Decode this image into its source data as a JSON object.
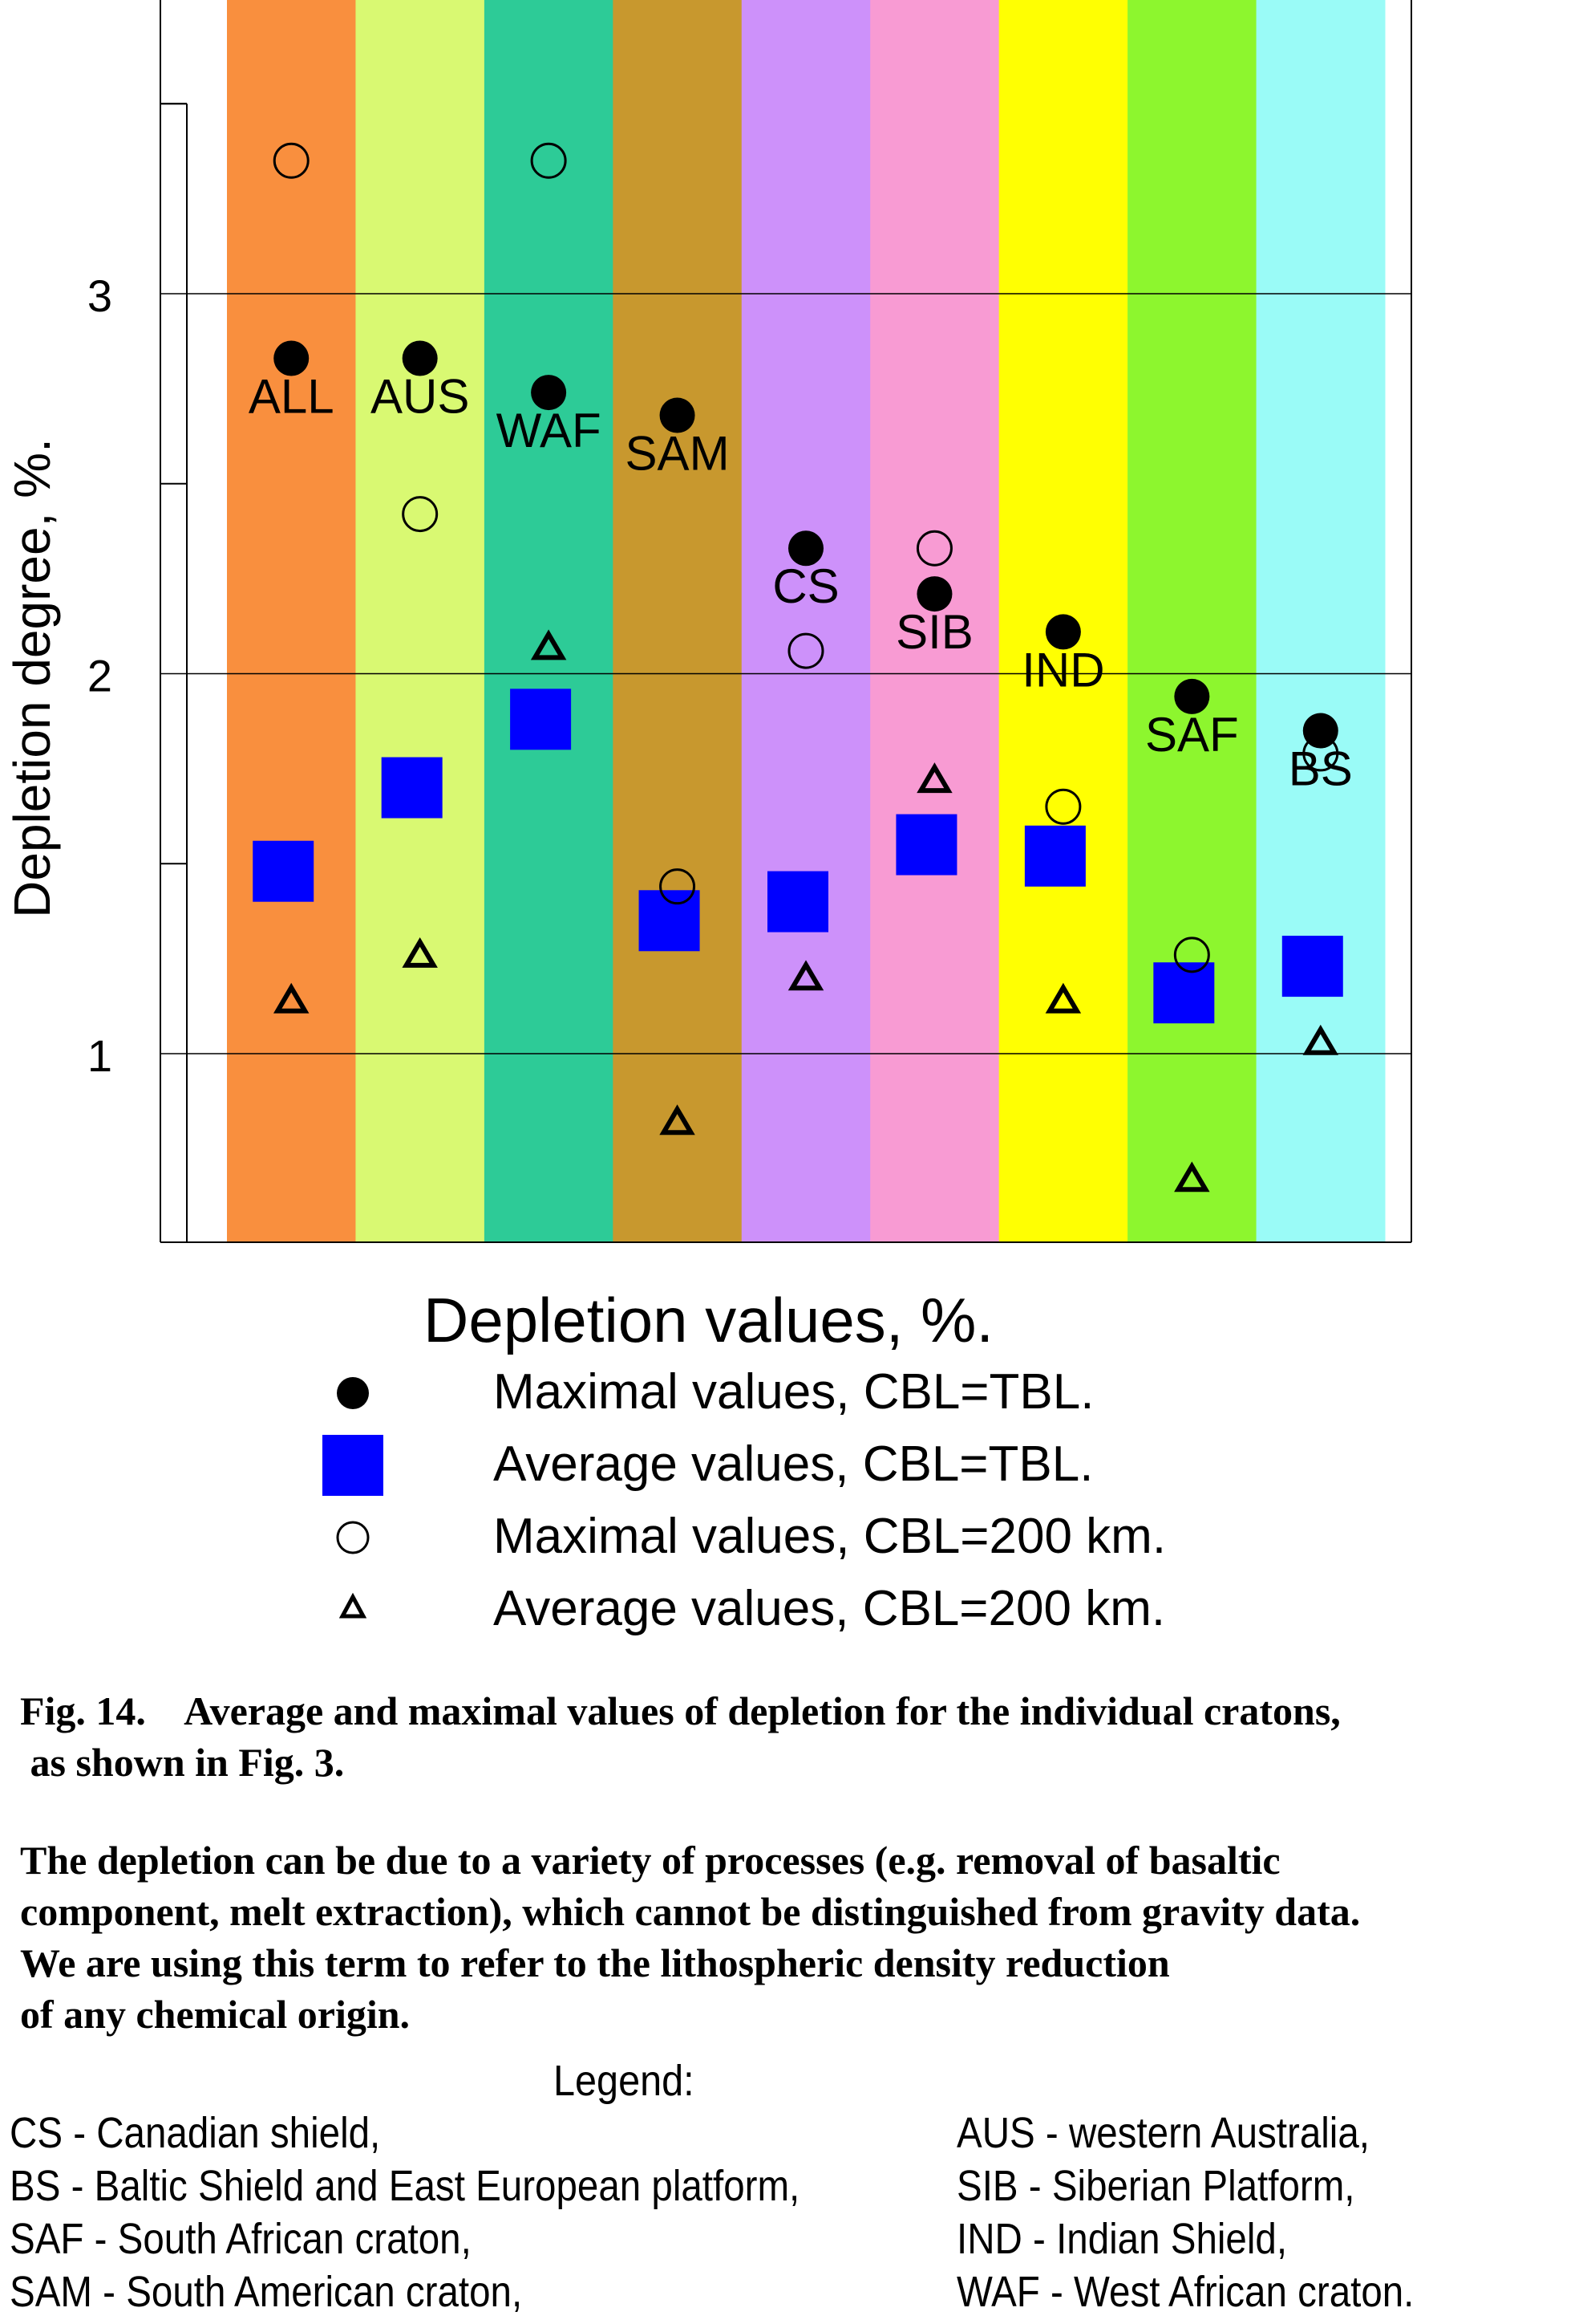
{
  "chart_data": {
    "type": "scatter",
    "title": "",
    "xlabel": "",
    "ylabel": "Depletion degree, %.",
    "ylim": [
      0.5,
      3.75
    ],
    "yticks": [
      "1",
      "2",
      "3"
    ],
    "grid": true,
    "legend_title": "Depletion values, %.",
    "legend_position": "below chart",
    "categories": [
      {
        "label": "ALL",
        "color": "#F98F3E"
      },
      {
        "label": "AUS",
        "color": "#D9F972"
      },
      {
        "label": "WAF",
        "color": "#2DCB97"
      },
      {
        "label": "SAM",
        "color": "#C8982E"
      },
      {
        "label": "CS",
        "color": "#CD91FA"
      },
      {
        "label": "SIB",
        "color": "#F89BD3"
      },
      {
        "label": "IND",
        "color": "#FFFF02"
      },
      {
        "label": "SAF",
        "color": "#8DF62E"
      },
      {
        "label": "BS",
        "color": "#9AFBF7"
      }
    ],
    "series": [
      {
        "name": "Maximal values, CBL=TBL.",
        "marker": "filled-circle",
        "color": "#000000",
        "values": [
          2.83,
          2.83,
          2.74,
          2.68,
          2.33,
          2.21,
          2.11,
          1.94,
          1.85
        ]
      },
      {
        "name": "Average values, CBL=TBL.",
        "marker": "filled-square",
        "color": "#0000FF",
        "values": [
          1.48,
          1.7,
          1.88,
          1.35,
          1.4,
          1.55,
          1.52,
          1.16,
          1.23
        ]
      },
      {
        "name": "Maximal values, CBL=200 km.",
        "marker": "open-circle",
        "color": "#000000",
        "values": [
          3.35,
          2.42,
          3.35,
          1.44,
          2.06,
          2.33,
          1.65,
          1.26,
          1.79
        ]
      },
      {
        "name": "Average values, CBL=200 km.",
        "marker": "open-triangle",
        "color": "#000000",
        "values": [
          1.14,
          1.26,
          2.07,
          0.82,
          1.2,
          1.72,
          1.14,
          0.67,
          1.03
        ]
      }
    ]
  },
  "caption": {
    "figure_line": "Fig. 14.    Average and maximal values of depletion for the individual cratons,\n as shown in Fig. 3.",
    "body": "The depletion can be due to a variety of processes (e.g. removal of basaltic\ncomponent, melt extraction), which cannot be distinguished from gravity data.\nWe are using this term to refer to the lithospheric density reduction\nof any chemical origin."
  },
  "abbreviations": {
    "title": "Legend:",
    "left": [
      "CS - Canadian shield,",
      "BS - Baltic Shield and East European platform,",
      "SAF - South African craton,",
      "SAM - South American craton,"
    ],
    "right": [
      "AUS - western Australia,",
      "SIB - Siberian Platform,",
      "IND - Indian Shield,",
      "WAF - West African craton."
    ]
  }
}
